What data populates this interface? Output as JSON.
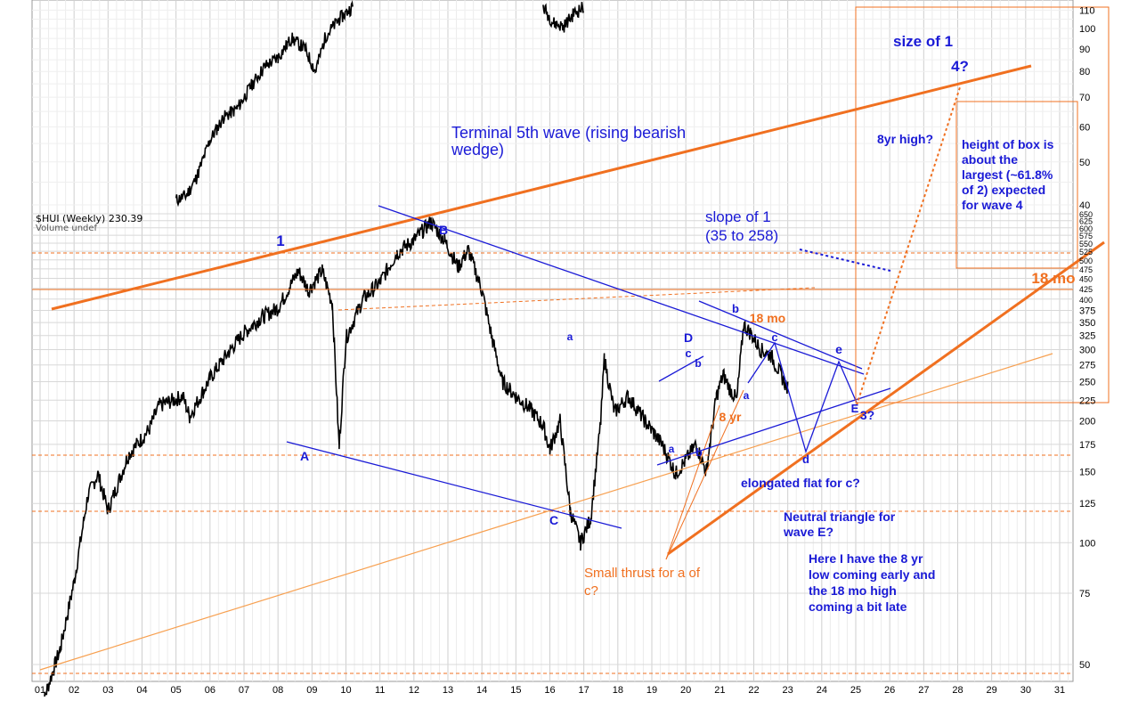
{
  "header": {
    "symbol_line": "$HUI (Weekly) 230.39",
    "volume_line": "Volume undef"
  },
  "colors": {
    "price": "#000000",
    "blue": "#1a1ad6",
    "orange": "#f07020",
    "light_orange": "#f7a050",
    "grid": "#d8d8d8"
  },
  "chart_data": {
    "type": "line",
    "series": [
      {
        "values": []
      }
    ],
    "x_tick_labels": [
      "01",
      "02",
      "03",
      "04",
      "05",
      "06",
      "07",
      "08",
      "09",
      "10",
      "11",
      "12",
      "13",
      "14",
      "15",
      "16",
      "17",
      "18",
      "19",
      "20",
      "21",
      "22",
      "23",
      "24",
      "25",
      "26",
      "27",
      "28",
      "29",
      "30",
      "31"
    ],
    "y_scale": "log",
    "y_ticks_main": [
      50,
      75,
      100,
      125,
      150,
      175,
      200,
      225,
      250,
      275,
      300,
      325,
      350,
      375,
      400,
      425,
      450,
      475,
      500,
      525,
      550,
      575,
      600,
      625,
      650
    ],
    "y_ticks_upper": [
      40,
      50,
      60,
      70,
      80,
      90,
      100,
      110
    ],
    "wave_labels": [
      {
        "text": "1",
        "color": "blue"
      },
      {
        "text": "A",
        "color": "blue"
      },
      {
        "text": "B",
        "color": "blue"
      },
      {
        "text": "C",
        "color": "blue"
      },
      {
        "text": "a",
        "color": "blue"
      },
      {
        "text": "D",
        "color": "blue"
      },
      {
        "text": "c",
        "color": "blue"
      },
      {
        "text": "b",
        "color": "blue"
      },
      {
        "text": "a",
        "color": "blue"
      },
      {
        "text": "b",
        "color": "blue"
      },
      {
        "text": "a",
        "color": "blue"
      },
      {
        "text": "b",
        "color": "blue"
      },
      {
        "text": "c",
        "color": "blue"
      },
      {
        "text": "d",
        "color": "blue"
      },
      {
        "text": "e",
        "color": "blue"
      },
      {
        "text": "E",
        "color": "blue"
      },
      {
        "text": "3?",
        "color": "blue"
      },
      {
        "text": "4?",
        "color": "blue"
      },
      {
        "text": "18 mo",
        "color": "orange"
      },
      {
        "text": "18 mo",
        "color": "orange"
      },
      {
        "text": "8 yr",
        "color": "orange"
      }
    ],
    "annotations": [
      {
        "lines": [
          "Terminal 5th wave (rising bearish",
          "wedge)"
        ]
      },
      {
        "lines": [
          "slope of 1",
          "(35 to 258)"
        ]
      },
      {
        "lines": [
          "size of 1"
        ]
      },
      {
        "lines": [
          "8yr high?"
        ]
      },
      {
        "lines": [
          "height of box is",
          "about the",
          "largest (~61.8%",
          "of 2) expected",
          "for wave 4"
        ]
      },
      {
        "lines": [
          "elongated flat for c?"
        ]
      },
      {
        "lines": [
          "Neutral triangle for",
          "wave E?"
        ]
      },
      {
        "lines": [
          "Here I have the 8 yr",
          "low coming early and",
          "the 18 mo high",
          "coming a bit late"
        ]
      },
      {
        "lines": [
          "Small thrust for a of",
          "c?"
        ]
      }
    ]
  }
}
